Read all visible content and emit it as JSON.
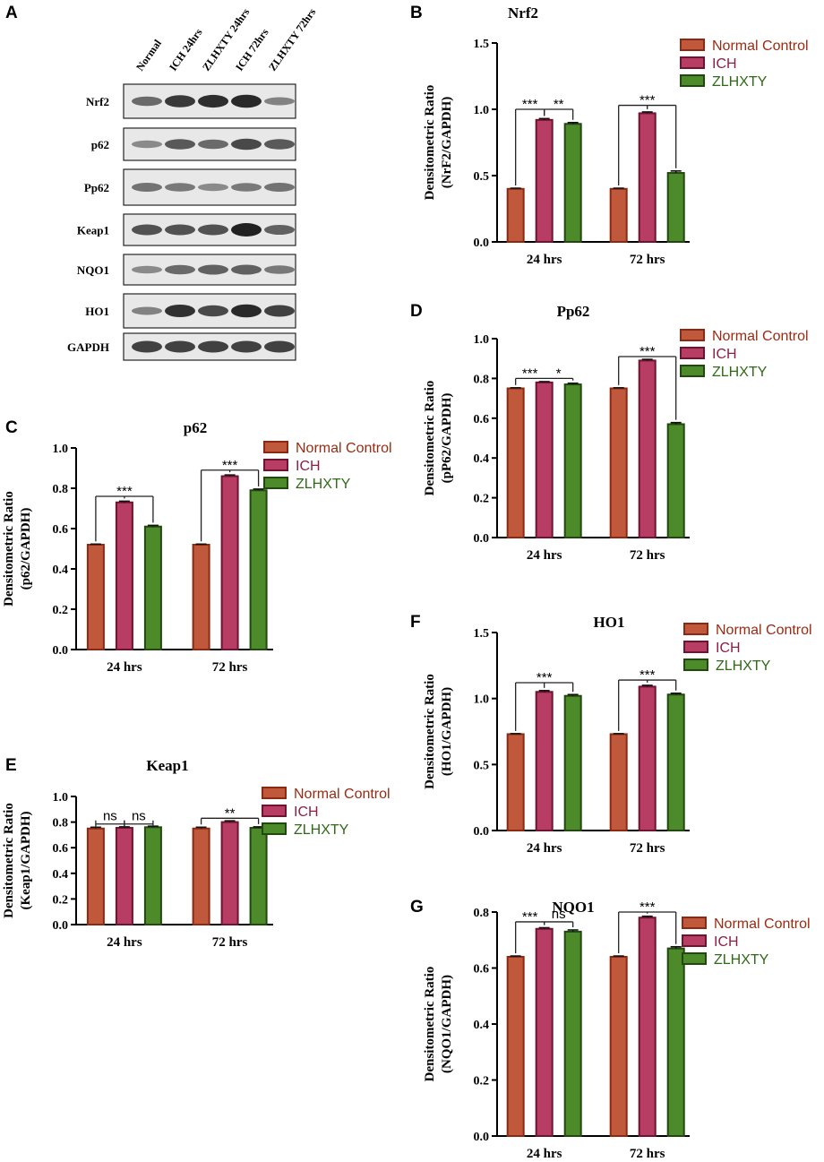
{
  "colors": {
    "normal_fill": "#c0583c",
    "normal_edge": "#8b2a12",
    "ich_fill": "#b83d64",
    "ich_edge": "#6e1330",
    "zlhxty_fill": "#4d8a2a",
    "zlhxty_edge": "#21480f",
    "legend_normal_text": "#9b2a12",
    "legend_ich_text": "#8e1f43",
    "legend_zlhxty_text": "#2f6a16"
  },
  "western_blot": {
    "letter": "A",
    "lanes": [
      "Normal",
      "ICH 24hrs",
      "ZLHXTY 24hrs",
      "ICH 72hrs",
      "ZLHXTY 72hrs"
    ],
    "proteins": [
      "Nrf2",
      "p62",
      "Pp62",
      "Keap1",
      "NQO1",
      "HO1",
      "GAPDH"
    ],
    "band_intensity": [
      [
        0.55,
        0.85,
        0.92,
        0.95,
        0.4
      ],
      [
        0.35,
        0.65,
        0.55,
        0.75,
        0.65
      ],
      [
        0.5,
        0.45,
        0.35,
        0.45,
        0.5
      ],
      [
        0.7,
        0.7,
        0.7,
        1.0,
        0.6
      ],
      [
        0.35,
        0.55,
        0.6,
        0.6,
        0.45
      ],
      [
        0.4,
        0.9,
        0.75,
        0.95,
        0.8
      ],
      [
        0.8,
        0.8,
        0.8,
        0.8,
        0.8
      ]
    ]
  },
  "chart_data": [
    {
      "letter": "B",
      "type": "bar",
      "title": "Nrf2",
      "ylabel": [
        "Densitometric Ratio",
        "(NrF2/GAPDH)"
      ],
      "categories": [
        "24 hrs",
        "72 hrs"
      ],
      "ylim": [
        0,
        1.5
      ],
      "yticks": [
        "0.0",
        "0.5",
        "1.0",
        "1.5"
      ],
      "tick_values": [
        0,
        0.5,
        1.0,
        1.5
      ],
      "series": [
        {
          "name": "Normal Control",
          "values": [
            0.4,
            0.4
          ],
          "errors": [
            0.005,
            0.005
          ]
        },
        {
          "name": "ICH",
          "values": [
            0.92,
            0.97
          ],
          "errors": [
            0.01,
            0.01
          ]
        },
        {
          "name": "ZLHXTY",
          "values": [
            0.89,
            0.52
          ],
          "errors": [
            0.01,
            0.015
          ]
        }
      ],
      "annotations": [
        {
          "group": 0,
          "from": 0,
          "to": 1,
          "label": "***",
          "y": 1.0
        },
        {
          "group": 0,
          "from": 1,
          "to": 2,
          "label": "**",
          "y": 1.0
        },
        {
          "group": 1,
          "from": 0,
          "to": 2,
          "label": "***",
          "y": 1.03,
          "center": 1
        }
      ]
    },
    {
      "letter": "D",
      "type": "bar",
      "title": "Pp62",
      "ylabel": [
        "Densitometric Ratio",
        "(pP62/GAPDH)"
      ],
      "categories": [
        "24 hrs",
        "72 hrs"
      ],
      "ylim": [
        0,
        1.0
      ],
      "yticks": [
        "0.0",
        "0.2",
        "0.4",
        "0.6",
        "0.8",
        "1.0"
      ],
      "tick_values": [
        0,
        0.2,
        0.4,
        0.6,
        0.8,
        1.0
      ],
      "series": [
        {
          "name": "Normal Control",
          "values": [
            0.75,
            0.75
          ],
          "errors": [
            0.003,
            0.003
          ]
        },
        {
          "name": "ICH",
          "values": [
            0.78,
            0.89
          ],
          "errors": [
            0.004,
            0.006
          ]
        },
        {
          "name": "ZLHXTY",
          "values": [
            0.77,
            0.57
          ],
          "errors": [
            0.006,
            0.008
          ]
        }
      ],
      "annotations": [
        {
          "group": 0,
          "from": 0,
          "to": 1,
          "label": "***",
          "y": 0.8
        },
        {
          "group": 0,
          "from": 1,
          "to": 2,
          "label": "*",
          "y": 0.8
        },
        {
          "group": 1,
          "from": 0,
          "to": 2,
          "label": "***",
          "y": 0.91,
          "center": 1
        }
      ]
    },
    {
      "letter": "C",
      "type": "bar",
      "title": "p62",
      "ylabel": [
        "Densitometric Ratio",
        "(p62/GAPDH)"
      ],
      "categories": [
        "24 hrs",
        "72 hrs"
      ],
      "ylim": [
        0,
        1.0
      ],
      "yticks": [
        "0.0",
        "0.2",
        "0.4",
        "0.6",
        "0.8",
        "1.0"
      ],
      "tick_values": [
        0,
        0.2,
        0.4,
        0.6,
        0.8,
        1.0
      ],
      "series": [
        {
          "name": "Normal Control",
          "values": [
            0.52,
            0.52
          ],
          "errors": [
            0.003,
            0.003
          ]
        },
        {
          "name": "ICH",
          "values": [
            0.73,
            0.86
          ],
          "errors": [
            0.006,
            0.006
          ]
        },
        {
          "name": "ZLHXTY",
          "values": [
            0.61,
            0.79
          ],
          "errors": [
            0.006,
            0.006
          ]
        }
      ],
      "annotations": [
        {
          "group": 0,
          "from": 0,
          "to": 2,
          "label": "***",
          "y": 0.76,
          "center": 1
        },
        {
          "group": 1,
          "from": 0,
          "to": 2,
          "label": "***",
          "y": 0.89,
          "center": 1
        }
      ]
    },
    {
      "letter": "F",
      "type": "bar",
      "title": "HO1",
      "ylabel": [
        "Densitometric Ratio",
        "(HO1/GAPDH)"
      ],
      "categories": [
        "24 hrs",
        "72 hrs"
      ],
      "ylim": [
        0,
        1.5
      ],
      "yticks": [
        "0.0",
        "0.5",
        "1.0",
        "1.5"
      ],
      "tick_values": [
        0,
        0.5,
        1.0,
        1.5
      ],
      "series": [
        {
          "name": "Normal Control",
          "values": [
            0.73,
            0.73
          ],
          "errors": [
            0.004,
            0.004
          ]
        },
        {
          "name": "ICH",
          "values": [
            1.05,
            1.09
          ],
          "errors": [
            0.01,
            0.01
          ]
        },
        {
          "name": "ZLHXTY",
          "values": [
            1.02,
            1.03
          ],
          "errors": [
            0.01,
            0.01
          ]
        }
      ],
      "annotations": [
        {
          "group": 0,
          "from": 0,
          "to": 2,
          "label": "***",
          "y": 1.12,
          "center": 1
        },
        {
          "group": 1,
          "from": 0,
          "to": 2,
          "label": "***",
          "y": 1.14,
          "center": 1
        }
      ]
    },
    {
      "letter": "E",
      "type": "bar",
      "title": "Keap1",
      "ylabel": [
        "Densitometric Ratio",
        "(Keap1/GAPDH)"
      ],
      "categories": [
        "24 hrs",
        "72 hrs"
      ],
      "ylim": [
        0,
        1.0
      ],
      "yticks": [
        "0.0",
        "0.2",
        "0.4",
        "0.6",
        "0.8",
        "1.0"
      ],
      "tick_values": [
        0,
        0.2,
        0.4,
        0.6,
        0.8,
        1.0
      ],
      "series": [
        {
          "name": "Normal Control",
          "values": [
            0.75,
            0.75
          ],
          "errors": [
            0.01,
            0.01
          ]
        },
        {
          "name": "ICH",
          "values": [
            0.755,
            0.8
          ],
          "errors": [
            0.008,
            0.01
          ]
        },
        {
          "name": "ZLHXTY",
          "values": [
            0.76,
            0.755
          ],
          "errors": [
            0.008,
            0.008
          ]
        }
      ],
      "annotations": [
        {
          "group": 0,
          "from": 0,
          "to": 1,
          "label": "ns",
          "y": 0.785,
          "style": "bracket"
        },
        {
          "group": 0,
          "from": 1,
          "to": 2,
          "label": "ns",
          "y": 0.785,
          "style": "bracket"
        },
        {
          "group": 1,
          "from": 0,
          "to": 2,
          "label": "**",
          "y": 0.83,
          "center": 1
        }
      ]
    },
    {
      "letter": "G",
      "type": "bar",
      "title": "NQO1",
      "ylabel": [
        "Densitometric Ratio",
        "(NQO1/GAPDH)"
      ],
      "categories": [
        "24 hrs",
        "72 hrs"
      ],
      "ylim": [
        0,
        0.8
      ],
      "yticks": [
        "0.0",
        "0.2",
        "0.4",
        "0.6",
        "0.8"
      ],
      "tick_values": [
        0,
        0.2,
        0.4,
        0.6,
        0.8
      ],
      "series": [
        {
          "name": "Normal Control",
          "values": [
            0.64,
            0.64
          ],
          "errors": [
            0.003,
            0.003
          ]
        },
        {
          "name": "ICH",
          "values": [
            0.74,
            0.78
          ],
          "errors": [
            0.004,
            0.005
          ]
        },
        {
          "name": "ZLHXTY",
          "values": [
            0.73,
            0.67
          ],
          "errors": [
            0.006,
            0.006
          ]
        }
      ],
      "annotations": [
        {
          "group": 0,
          "from": 0,
          "to": 1,
          "label": "***",
          "y": 0.765
        },
        {
          "group": 0,
          "from": 1,
          "to": 2,
          "label": "ns",
          "y": 0.765
        },
        {
          "group": 1,
          "from": 0,
          "to": 2,
          "label": "***",
          "y": 0.8,
          "center": 1
        }
      ]
    }
  ]
}
